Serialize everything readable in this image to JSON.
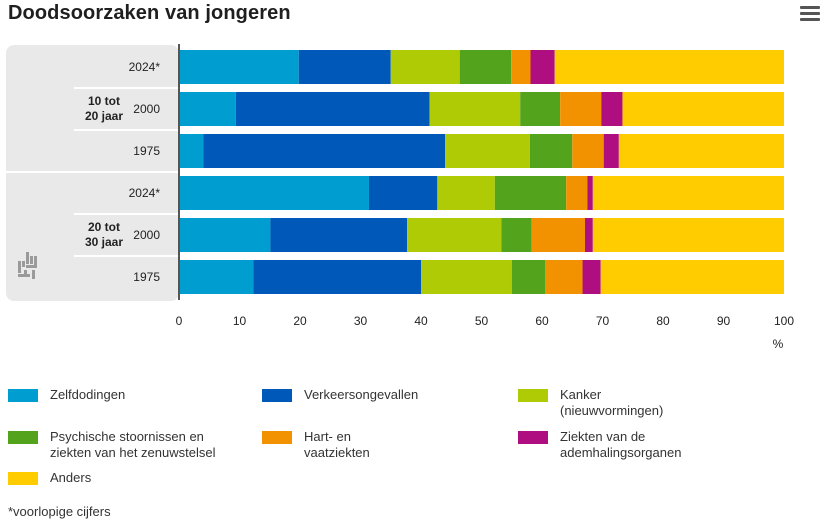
{
  "title": "Doodsoorzaken van jongeren",
  "menu": {
    "icon": "hamburger-menu-icon"
  },
  "footnote": "*voorlopige cijfers",
  "chart_data": {
    "type": "bar",
    "orientation": "horizontal",
    "stacked": true,
    "title": "Doodsoorzaken van jongeren",
    "xlabel": "%",
    "xlim": [
      0,
      100
    ],
    "xticks": [
      "0",
      "10",
      "20",
      "30",
      "40",
      "50",
      "60",
      "70",
      "80",
      "90",
      "100"
    ],
    "groups": [
      {
        "label": "10 tot\n20 jaar",
        "categories": [
          "2024*",
          "2000",
          "1975"
        ]
      },
      {
        "label": "20 tot\n30 jaar",
        "categories": [
          "2024*",
          "2000",
          "1975"
        ]
      }
    ],
    "series": [
      {
        "name": "Zelfdodingen",
        "color": "#009dd1",
        "values": [
          19.8,
          9.4,
          4.0,
          31.4,
          15.1,
          12.3
        ]
      },
      {
        "name": "Verkeersongevallen",
        "color": "#0058b8",
        "values": [
          15.2,
          32.0,
          40.0,
          11.3,
          22.6,
          27.7
        ]
      },
      {
        "name": "Kanker\n(nieuwvormingen)",
        "color": "#afcb05",
        "values": [
          11.4,
          15.0,
          14.0,
          9.5,
          15.6,
          15.0
        ]
      },
      {
        "name": "Psychische stoornissen en\nziekten van het zenuwstelsel",
        "color": "#53a31d",
        "values": [
          8.5,
          6.6,
          7.0,
          11.8,
          5.0,
          5.5
        ]
      },
      {
        "name": "Hart- en\nvaatziekten",
        "color": "#f39200",
        "values": [
          3.2,
          6.8,
          5.2,
          3.5,
          8.8,
          6.2
        ]
      },
      {
        "name": "Ziekten van de\nademhalingsorganen",
        "color": "#af0e80",
        "values": [
          4.0,
          3.5,
          2.5,
          0.9,
          1.3,
          3.0
        ]
      },
      {
        "name": "Anders",
        "color": "#ffcc00",
        "values": [
          37.9,
          26.7,
          27.3,
          31.6,
          31.6,
          30.3
        ]
      }
    ]
  }
}
